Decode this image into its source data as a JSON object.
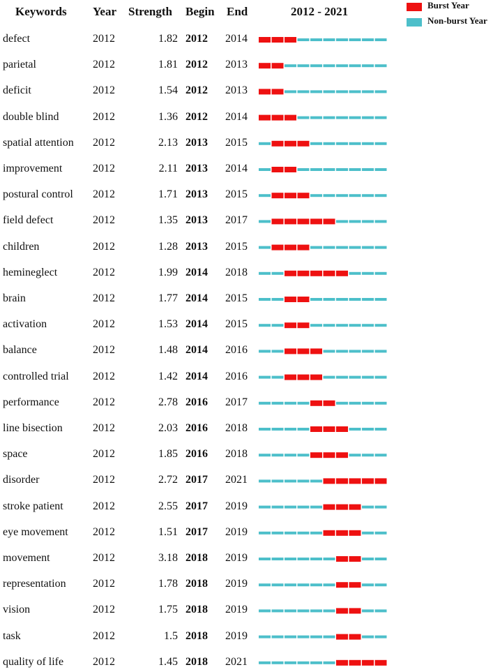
{
  "legend": {
    "burst_label": "Burst Year",
    "nonburst_label": "Non-burst Year",
    "burst_color": "#ee1111",
    "nonburst_color": "#4dbfca"
  },
  "chart_data": {
    "type": "table",
    "headers": {
      "keywords": "Keywords",
      "year": "Year",
      "strength": "Strength",
      "begin": "Begin",
      "end": "End",
      "range": "2012 - 2021"
    },
    "year_range": [
      2012,
      2021
    ],
    "rows": [
      {
        "keyword": "defect",
        "year": "2012",
        "strength": "1.82",
        "begin": "2012",
        "end": "2014"
      },
      {
        "keyword": "parietal",
        "year": "2012",
        "strength": "1.81",
        "begin": "2012",
        "end": "2013"
      },
      {
        "keyword": "deficit",
        "year": "2012",
        "strength": "1.54",
        "begin": "2012",
        "end": "2013"
      },
      {
        "keyword": "double blind",
        "year": "2012",
        "strength": "1.36",
        "begin": "2012",
        "end": "2014"
      },
      {
        "keyword": "spatial attention",
        "year": "2012",
        "strength": "2.13",
        "begin": "2013",
        "end": "2015"
      },
      {
        "keyword": "improvement",
        "year": "2012",
        "strength": "2.11",
        "begin": "2013",
        "end": "2014"
      },
      {
        "keyword": "postural control",
        "year": "2012",
        "strength": "1.71",
        "begin": "2013",
        "end": "2015"
      },
      {
        "keyword": "field defect",
        "year": "2012",
        "strength": "1.35",
        "begin": "2013",
        "end": "2017"
      },
      {
        "keyword": "children",
        "year": "2012",
        "strength": "1.28",
        "begin": "2013",
        "end": "2015"
      },
      {
        "keyword": "hemineglect",
        "year": "2012",
        "strength": "1.99",
        "begin": "2014",
        "end": "2018"
      },
      {
        "keyword": "brain",
        "year": "2012",
        "strength": "1.77",
        "begin": "2014",
        "end": "2015"
      },
      {
        "keyword": "activation",
        "year": "2012",
        "strength": "1.53",
        "begin": "2014",
        "end": "2015"
      },
      {
        "keyword": "balance",
        "year": "2012",
        "strength": "1.48",
        "begin": "2014",
        "end": "2016"
      },
      {
        "keyword": "controlled trial",
        "year": "2012",
        "strength": "1.42",
        "begin": "2014",
        "end": "2016"
      },
      {
        "keyword": "performance",
        "year": "2012",
        "strength": "2.78",
        "begin": "2016",
        "end": "2017"
      },
      {
        "keyword": "line bisection",
        "year": "2012",
        "strength": "2.03",
        "begin": "2016",
        "end": "2018"
      },
      {
        "keyword": "space",
        "year": "2012",
        "strength": "1.85",
        "begin": "2016",
        "end": "2018"
      },
      {
        "keyword": "disorder",
        "year": "2012",
        "strength": "2.72",
        "begin": "2017",
        "end": "2021"
      },
      {
        "keyword": "stroke patient",
        "year": "2012",
        "strength": "2.55",
        "begin": "2017",
        "end": "2019"
      },
      {
        "keyword": "eye movement",
        "year": "2012",
        "strength": "1.51",
        "begin": "2017",
        "end": "2019"
      },
      {
        "keyword": "movement",
        "year": "2012",
        "strength": "3.18",
        "begin": "2018",
        "end": "2019"
      },
      {
        "keyword": "representation",
        "year": "2012",
        "strength": "1.78",
        "begin": "2018",
        "end": "2019"
      },
      {
        "keyword": "vision",
        "year": "2012",
        "strength": "1.75",
        "begin": "2018",
        "end": "2019"
      },
      {
        "keyword": "task",
        "year": "2012",
        "strength": "1.5",
        "begin": "2018",
        "end": "2019"
      },
      {
        "keyword": "quality of life",
        "year": "2012",
        "strength": "1.45",
        "begin": "2018",
        "end": "2021"
      }
    ]
  }
}
